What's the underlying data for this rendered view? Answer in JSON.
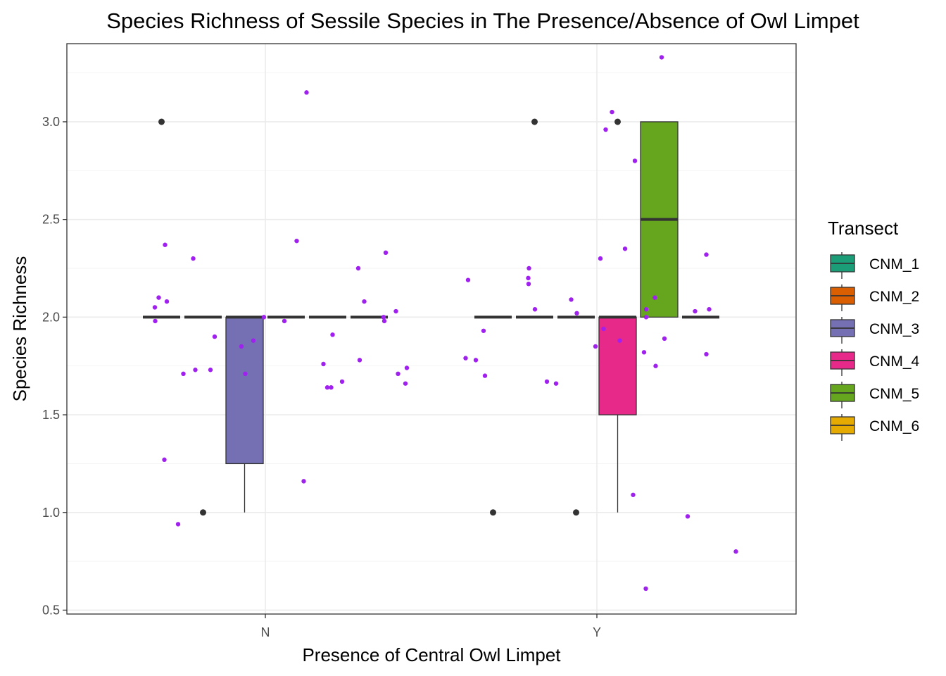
{
  "chart_data": {
    "type": "boxplot",
    "title": "Species Richness of Sessile Species in The Presence/Absence of Owl Limpet",
    "xlabel": "Presence of Central Owl Limpet",
    "ylabel": "Species Richness",
    "categories": [
      "N",
      "Y"
    ],
    "ylim": [
      0.48,
      3.4
    ],
    "yticks": [
      0.5,
      1.0,
      1.5,
      2.0,
      2.5,
      3.0
    ],
    "ytick_labels": [
      "0.5",
      "1.0",
      "1.5",
      "2.0",
      "2.5",
      "3.0"
    ],
    "grid": true,
    "legend": {
      "title": "Transect",
      "position": "right",
      "entries": [
        "CNM_1",
        "CNM_2",
        "CNM_3",
        "CNM_4",
        "CNM_5",
        "CNM_6"
      ]
    },
    "colors": {
      "CNM_1": "#1b9e77",
      "CNM_2": "#d95f02",
      "CNM_3": "#7570b3",
      "CNM_4": "#e7298a",
      "CNM_5": "#66a61e",
      "CNM_6": "#e6ab02",
      "jitter": "#a020f0",
      "outlier": "#333333",
      "median": "#333333"
    },
    "boxes": [
      {
        "category": "N",
        "transect": "CNM_1",
        "lower": 2.0,
        "q1": 2.0,
        "median": 2.0,
        "q3": 2.0,
        "upper": 2.0,
        "outliers": [
          3.0
        ]
      },
      {
        "category": "N",
        "transect": "CNM_2",
        "lower": 2.0,
        "q1": 2.0,
        "median": 2.0,
        "q3": 2.0,
        "upper": 2.0,
        "outliers": [
          1.0
        ]
      },
      {
        "category": "N",
        "transect": "CNM_3",
        "lower": 1.0,
        "q1": 1.25,
        "median": 2.0,
        "q3": 2.0,
        "upper": 2.0,
        "outliers": []
      },
      {
        "category": "N",
        "transect": "CNM_4",
        "lower": 2.0,
        "q1": 2.0,
        "median": 2.0,
        "q3": 2.0,
        "upper": 2.0,
        "outliers": []
      },
      {
        "category": "N",
        "transect": "CNM_5",
        "lower": 2.0,
        "q1": 2.0,
        "median": 2.0,
        "q3": 2.0,
        "upper": 2.0,
        "outliers": []
      },
      {
        "category": "N",
        "transect": "CNM_6",
        "lower": 2.0,
        "q1": 2.0,
        "median": 2.0,
        "q3": 2.0,
        "upper": 2.0,
        "outliers": []
      },
      {
        "category": "Y",
        "transect": "CNM_1",
        "lower": 2.0,
        "q1": 2.0,
        "median": 2.0,
        "q3": 2.0,
        "upper": 2.0,
        "outliers": [
          1.0
        ]
      },
      {
        "category": "Y",
        "transect": "CNM_2",
        "lower": 2.0,
        "q1": 2.0,
        "median": 2.0,
        "q3": 2.0,
        "upper": 2.0,
        "outliers": [
          3.0
        ]
      },
      {
        "category": "Y",
        "transect": "CNM_3",
        "lower": 2.0,
        "q1": 2.0,
        "median": 2.0,
        "q3": 2.0,
        "upper": 2.0,
        "outliers": [
          1.0
        ]
      },
      {
        "category": "Y",
        "transect": "CNM_4",
        "lower": 1.0,
        "q1": 1.5,
        "median": 2.0,
        "q3": 2.0,
        "upper": 2.0,
        "outliers": [
          3.0
        ]
      },
      {
        "category": "Y",
        "transect": "CNM_5",
        "lower": 2.0,
        "q1": 2.0,
        "median": 2.5,
        "q3": 3.0,
        "upper": 3.0,
        "outliers": []
      },
      {
        "category": "Y",
        "transect": "CNM_6",
        "lower": 2.0,
        "q1": 2.0,
        "median": 2.0,
        "q3": 2.0,
        "upper": 2.0,
        "outliers": []
      }
    ],
    "jitter_points": {
      "N": [
        {
          "x": -0.314,
          "y": 2.05
        },
        {
          "x": -0.313,
          "y": 1.98
        },
        {
          "x": -0.303,
          "y": 2.1
        },
        {
          "x": -0.285,
          "y": 2.37
        },
        {
          "x": -0.28,
          "y": 2.08
        },
        {
          "x": -0.287,
          "y": 1.27
        },
        {
          "x": -0.248,
          "y": 0.94
        },
        {
          "x": -0.233,
          "y": 1.71
        },
        {
          "x": -0.205,
          "y": 2.3
        },
        {
          "x": -0.199,
          "y": 1.73
        },
        {
          "x": -0.156,
          "y": 1.73
        },
        {
          "x": -0.144,
          "y": 1.9
        },
        {
          "x": -0.068,
          "y": 1.85
        },
        {
          "x": -0.057,
          "y": 1.71
        },
        {
          "x": -0.034,
          "y": 1.88
        },
        {
          "x": -0.004,
          "y": 2.0
        },
        {
          "x": 0.054,
          "y": 1.98
        },
        {
          "x": 0.089,
          "y": 2.39
        },
        {
          "x": 0.109,
          "y": 1.16
        },
        {
          "x": 0.117,
          "y": 3.15
        },
        {
          "x": 0.165,
          "y": 1.76
        },
        {
          "x": 0.176,
          "y": 1.64
        },
        {
          "x": 0.187,
          "y": 1.64
        },
        {
          "x": 0.191,
          "y": 1.91
        },
        {
          "x": 0.218,
          "y": 1.67
        },
        {
          "x": 0.264,
          "y": 2.25
        },
        {
          "x": 0.268,
          "y": 1.78
        },
        {
          "x": 0.281,
          "y": 2.08
        },
        {
          "x": 0.336,
          "y": 2.0
        },
        {
          "x": 0.338,
          "y": 1.98
        },
        {
          "x": 0.342,
          "y": 2.33
        },
        {
          "x": 0.371,
          "y": 2.03
        },
        {
          "x": 0.377,
          "y": 1.71
        },
        {
          "x": 0.398,
          "y": 1.66
        },
        {
          "x": 0.402,
          "y": 1.74
        }
      ],
      "Y": [
        {
          "x": -0.366,
          "y": 2.19
        },
        {
          "x": -0.373,
          "y": 1.79
        },
        {
          "x": -0.344,
          "y": 1.78
        },
        {
          "x": -0.322,
          "y": 1.93
        },
        {
          "x": -0.318,
          "y": 1.7
        },
        {
          "x": -0.193,
          "y": 2.25
        },
        {
          "x": -0.195,
          "y": 2.2
        },
        {
          "x": -0.194,
          "y": 2.17
        },
        {
          "x": -0.176,
          "y": 2.04
        },
        {
          "x": -0.142,
          "y": 1.67
        },
        {
          "x": -0.116,
          "y": 1.66
        },
        {
          "x": -0.073,
          "y": 2.09
        },
        {
          "x": -0.057,
          "y": 2.02
        },
        {
          "x": -0.004,
          "y": 1.85
        },
        {
          "x": 0.01,
          "y": 2.3
        },
        {
          "x": 0.019,
          "y": 1.94
        },
        {
          "x": 0.025,
          "y": 2.96
        },
        {
          "x": 0.043,
          "y": 3.05
        },
        {
          "x": 0.065,
          "y": 1.88
        },
        {
          "x": 0.08,
          "y": 2.35
        },
        {
          "x": 0.103,
          "y": 1.09
        },
        {
          "x": 0.108,
          "y": 2.8
        },
        {
          "x": 0.134,
          "y": 1.82
        },
        {
          "x": 0.139,
          "y": 0.61
        },
        {
          "x": 0.14,
          "y": 2.04
        },
        {
          "x": 0.14,
          "y": 2.0
        },
        {
          "x": 0.165,
          "y": 2.1
        },
        {
          "x": 0.167,
          "y": 1.75
        },
        {
          "x": 0.184,
          "y": 3.33
        },
        {
          "x": 0.192,
          "y": 1.89
        },
        {
          "x": 0.258,
          "y": 0.98
        },
        {
          "x": 0.279,
          "y": 2.03
        },
        {
          "x": 0.311,
          "y": 1.81
        },
        {
          "x": 0.311,
          "y": 2.32
        },
        {
          "x": 0.319,
          "y": 2.04
        },
        {
          "x": 0.395,
          "y": 0.8
        }
      ]
    }
  }
}
